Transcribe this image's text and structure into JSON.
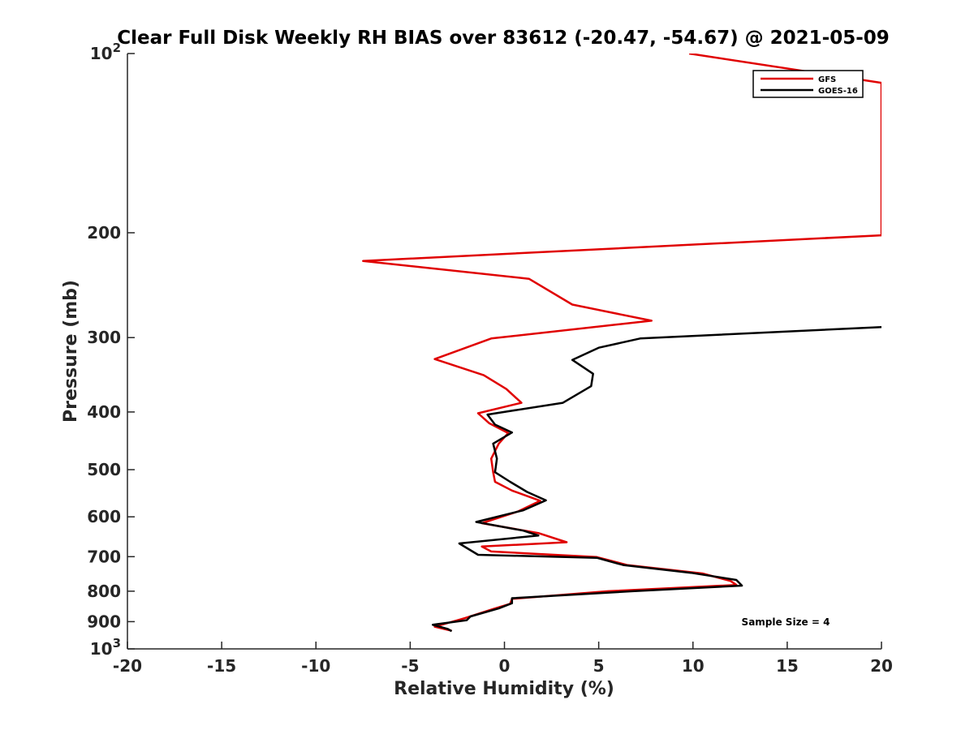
{
  "chart_data": {
    "type": "line",
    "title": "Clear Full Disk Weekly RH BIAS over 83612 (-20.47, -54.67) @ 2021-05-09",
    "xlabel": "Relative Humidity (%)",
    "ylabel": "Pressure (mb)",
    "xlim": [
      -20,
      20
    ],
    "ylim": [
      100,
      1000
    ],
    "yscale": "log",
    "y_reversed": true,
    "x_ticks": [
      "-20",
      "-15",
      "-10",
      "-5",
      "0",
      "5",
      "10",
      "15",
      "20"
    ],
    "y_ticks": [
      {
        "value": 100,
        "base": "10",
        "exp": "2"
      },
      {
        "value": 200,
        "label": "200"
      },
      {
        "value": 300,
        "label": "300"
      },
      {
        "value": 400,
        "label": "400"
      },
      {
        "value": 500,
        "label": "500"
      },
      {
        "value": 600,
        "label": "600"
      },
      {
        "value": 700,
        "label": "700"
      },
      {
        "value": 800,
        "label": "800"
      },
      {
        "value": 900,
        "label": "900"
      },
      {
        "value": 1000,
        "base": "10",
        "exp": "3"
      }
    ],
    "grid": false,
    "legend_position": "top-right",
    "annotation": "Sample Size = 4",
    "series": [
      {
        "name": "GFS",
        "color": "#e00000",
        "points": [
          [
            9.8,
            100
          ],
          [
            20.0,
            112
          ],
          [
            20.0,
            202
          ],
          [
            -7.5,
            223
          ],
          [
            1.3,
            239
          ],
          [
            3.6,
            264
          ],
          [
            7.8,
            281
          ],
          [
            -0.7,
            301
          ],
          [
            -3.7,
            326
          ],
          [
            -1.1,
            347
          ],
          [
            0.1,
            366
          ],
          [
            0.9,
            386
          ],
          [
            -1.4,
            402
          ],
          [
            -0.8,
            418
          ],
          [
            0.2,
            434
          ],
          [
            -0.3,
            452
          ],
          [
            -0.7,
            479
          ],
          [
            -0.6,
            505
          ],
          [
            -0.5,
            524
          ],
          [
            0.4,
            542
          ],
          [
            1.9,
            564
          ],
          [
            0.7,
            588
          ],
          [
            -1.2,
            615
          ],
          [
            1.8,
            639
          ],
          [
            3.3,
            662
          ],
          [
            -1.2,
            673
          ],
          [
            -0.7,
            686
          ],
          [
            4.9,
            701
          ],
          [
            6.5,
            723
          ],
          [
            10.5,
            747
          ],
          [
            12.0,
            769
          ],
          [
            12.3,
            781
          ],
          [
            5.5,
            800
          ],
          [
            0.4,
            824
          ],
          [
            0.3,
            840
          ],
          [
            -0.6,
            857
          ],
          [
            -2.1,
            888
          ],
          [
            -3.7,
            918
          ],
          [
            -2.8,
            932
          ]
        ]
      },
      {
        "name": "GOES-16",
        "color": "#000000",
        "points": [
          [
            20.0,
            288
          ],
          [
            7.2,
            301
          ],
          [
            5.0,
            312
          ],
          [
            3.6,
            327
          ],
          [
            4.7,
            345
          ],
          [
            4.6,
            362
          ],
          [
            3.1,
            386
          ],
          [
            -0.9,
            404
          ],
          [
            -0.5,
            420
          ],
          [
            0.4,
            433
          ],
          [
            -0.6,
            452
          ],
          [
            -0.4,
            479
          ],
          [
            -0.5,
            505
          ],
          [
            0.3,
            524
          ],
          [
            1.2,
            545
          ],
          [
            2.2,
            563
          ],
          [
            1.0,
            585
          ],
          [
            -1.5,
            612
          ],
          [
            1.0,
            633
          ],
          [
            1.8,
            645
          ],
          [
            -2.4,
            665
          ],
          [
            -1.4,
            695
          ],
          [
            4.9,
            703
          ],
          [
            6.3,
            723
          ],
          [
            9.9,
            745
          ],
          [
            12.3,
            766
          ],
          [
            12.6,
            783
          ],
          [
            6.8,
            800
          ],
          [
            0.4,
            822
          ],
          [
            0.4,
            838
          ],
          [
            -0.3,
            855
          ],
          [
            -1.8,
            882
          ],
          [
            -2.0,
            895
          ],
          [
            -3.8,
            911
          ],
          [
            -3.0,
            926
          ],
          [
            -2.8,
            934
          ]
        ]
      }
    ]
  }
}
